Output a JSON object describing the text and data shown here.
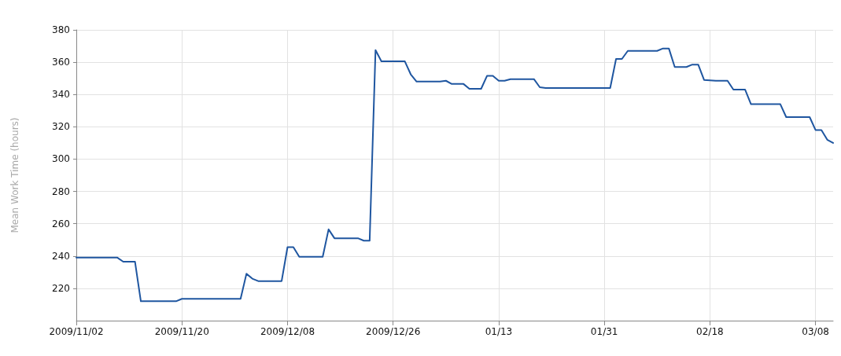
{
  "chart_data": {
    "type": "line",
    "ylabel": "Mean Work Time (hours)",
    "x": [
      "2009-11-02",
      "2009-11-09",
      "2009-11-10",
      "2009-11-12",
      "2009-11-13",
      "2009-11-19",
      "2009-11-20",
      "2009-11-30",
      "2009-12-01",
      "2009-12-02",
      "2009-12-03",
      "2009-12-07",
      "2009-12-08",
      "2009-12-09",
      "2009-12-10",
      "2009-12-14",
      "2009-12-15",
      "2009-12-16",
      "2009-12-20",
      "2009-12-21",
      "2009-12-22",
      "2009-12-23",
      "2009-12-24",
      "2009-12-28",
      "2009-12-29",
      "2009-12-30",
      "2010-01-03",
      "2010-01-04",
      "2010-01-05",
      "2010-01-07",
      "2010-01-08",
      "2010-01-10",
      "2010-01-11",
      "2010-01-12",
      "2010-01-13",
      "2010-01-14",
      "2010-01-15",
      "2010-01-19",
      "2010-01-20",
      "2010-01-21",
      "2010-02-01",
      "2010-02-02",
      "2010-02-03",
      "2010-02-04",
      "2010-02-09",
      "2010-02-10",
      "2010-02-11",
      "2010-02-12",
      "2010-02-14",
      "2010-02-15",
      "2010-02-16",
      "2010-02-17",
      "2010-02-19",
      "2010-02-21",
      "2010-02-22",
      "2010-02-24",
      "2010-02-25",
      "2010-03-02",
      "2010-03-03",
      "2010-03-07",
      "2010-03-08",
      "2010-03-09",
      "2010-03-10",
      "2010-03-11"
    ],
    "series": [
      {
        "color": "#1f56a0",
        "values": [
          239,
          239,
          236.5,
          236.5,
          212,
          212,
          213.5,
          213.5,
          229,
          226,
          224.5,
          224.5,
          245.5,
          245.5,
          239.5,
          239.5,
          256.5,
          251,
          251,
          249.5,
          249.5,
          367.5,
          360.5,
          360.5,
          352.5,
          348,
          348,
          348.5,
          346.5,
          346.5,
          343.5,
          343.5,
          351.5,
          351.5,
          348.5,
          348.5,
          349.5,
          349.5,
          344.5,
          344,
          344,
          362,
          362,
          367,
          367,
          368.5,
          368.5,
          357,
          357,
          358.5,
          358.5,
          349,
          348.5,
          348.5,
          343,
          343,
          334,
          334,
          326,
          326,
          318,
          318,
          312,
          310
        ]
      }
    ],
    "xlim": [
      "2009-11-02",
      "2010-03-11"
    ],
    "xticks": [
      {
        "value": "2009-11-02",
        "label": "2009/11/02"
      },
      {
        "value": "2009-11-20",
        "label": "2009/11/20"
      },
      {
        "value": "2009-12-08",
        "label": "2009/12/08"
      },
      {
        "value": "2009-12-26",
        "label": "2009/12/26"
      },
      {
        "value": "2010-01-13",
        "label": "01/13"
      },
      {
        "value": "2010-01-31",
        "label": "01/31"
      },
      {
        "value": "2010-02-18",
        "label": "02/18"
      },
      {
        "value": "2010-03-08",
        "label": "03/08"
      }
    ],
    "ylim": [
      200,
      380
    ],
    "yticks": [
      220,
      240,
      260,
      280,
      300,
      320,
      340,
      360,
      380
    ],
    "grid": true,
    "marker": "none",
    "line_style": "solid"
  }
}
